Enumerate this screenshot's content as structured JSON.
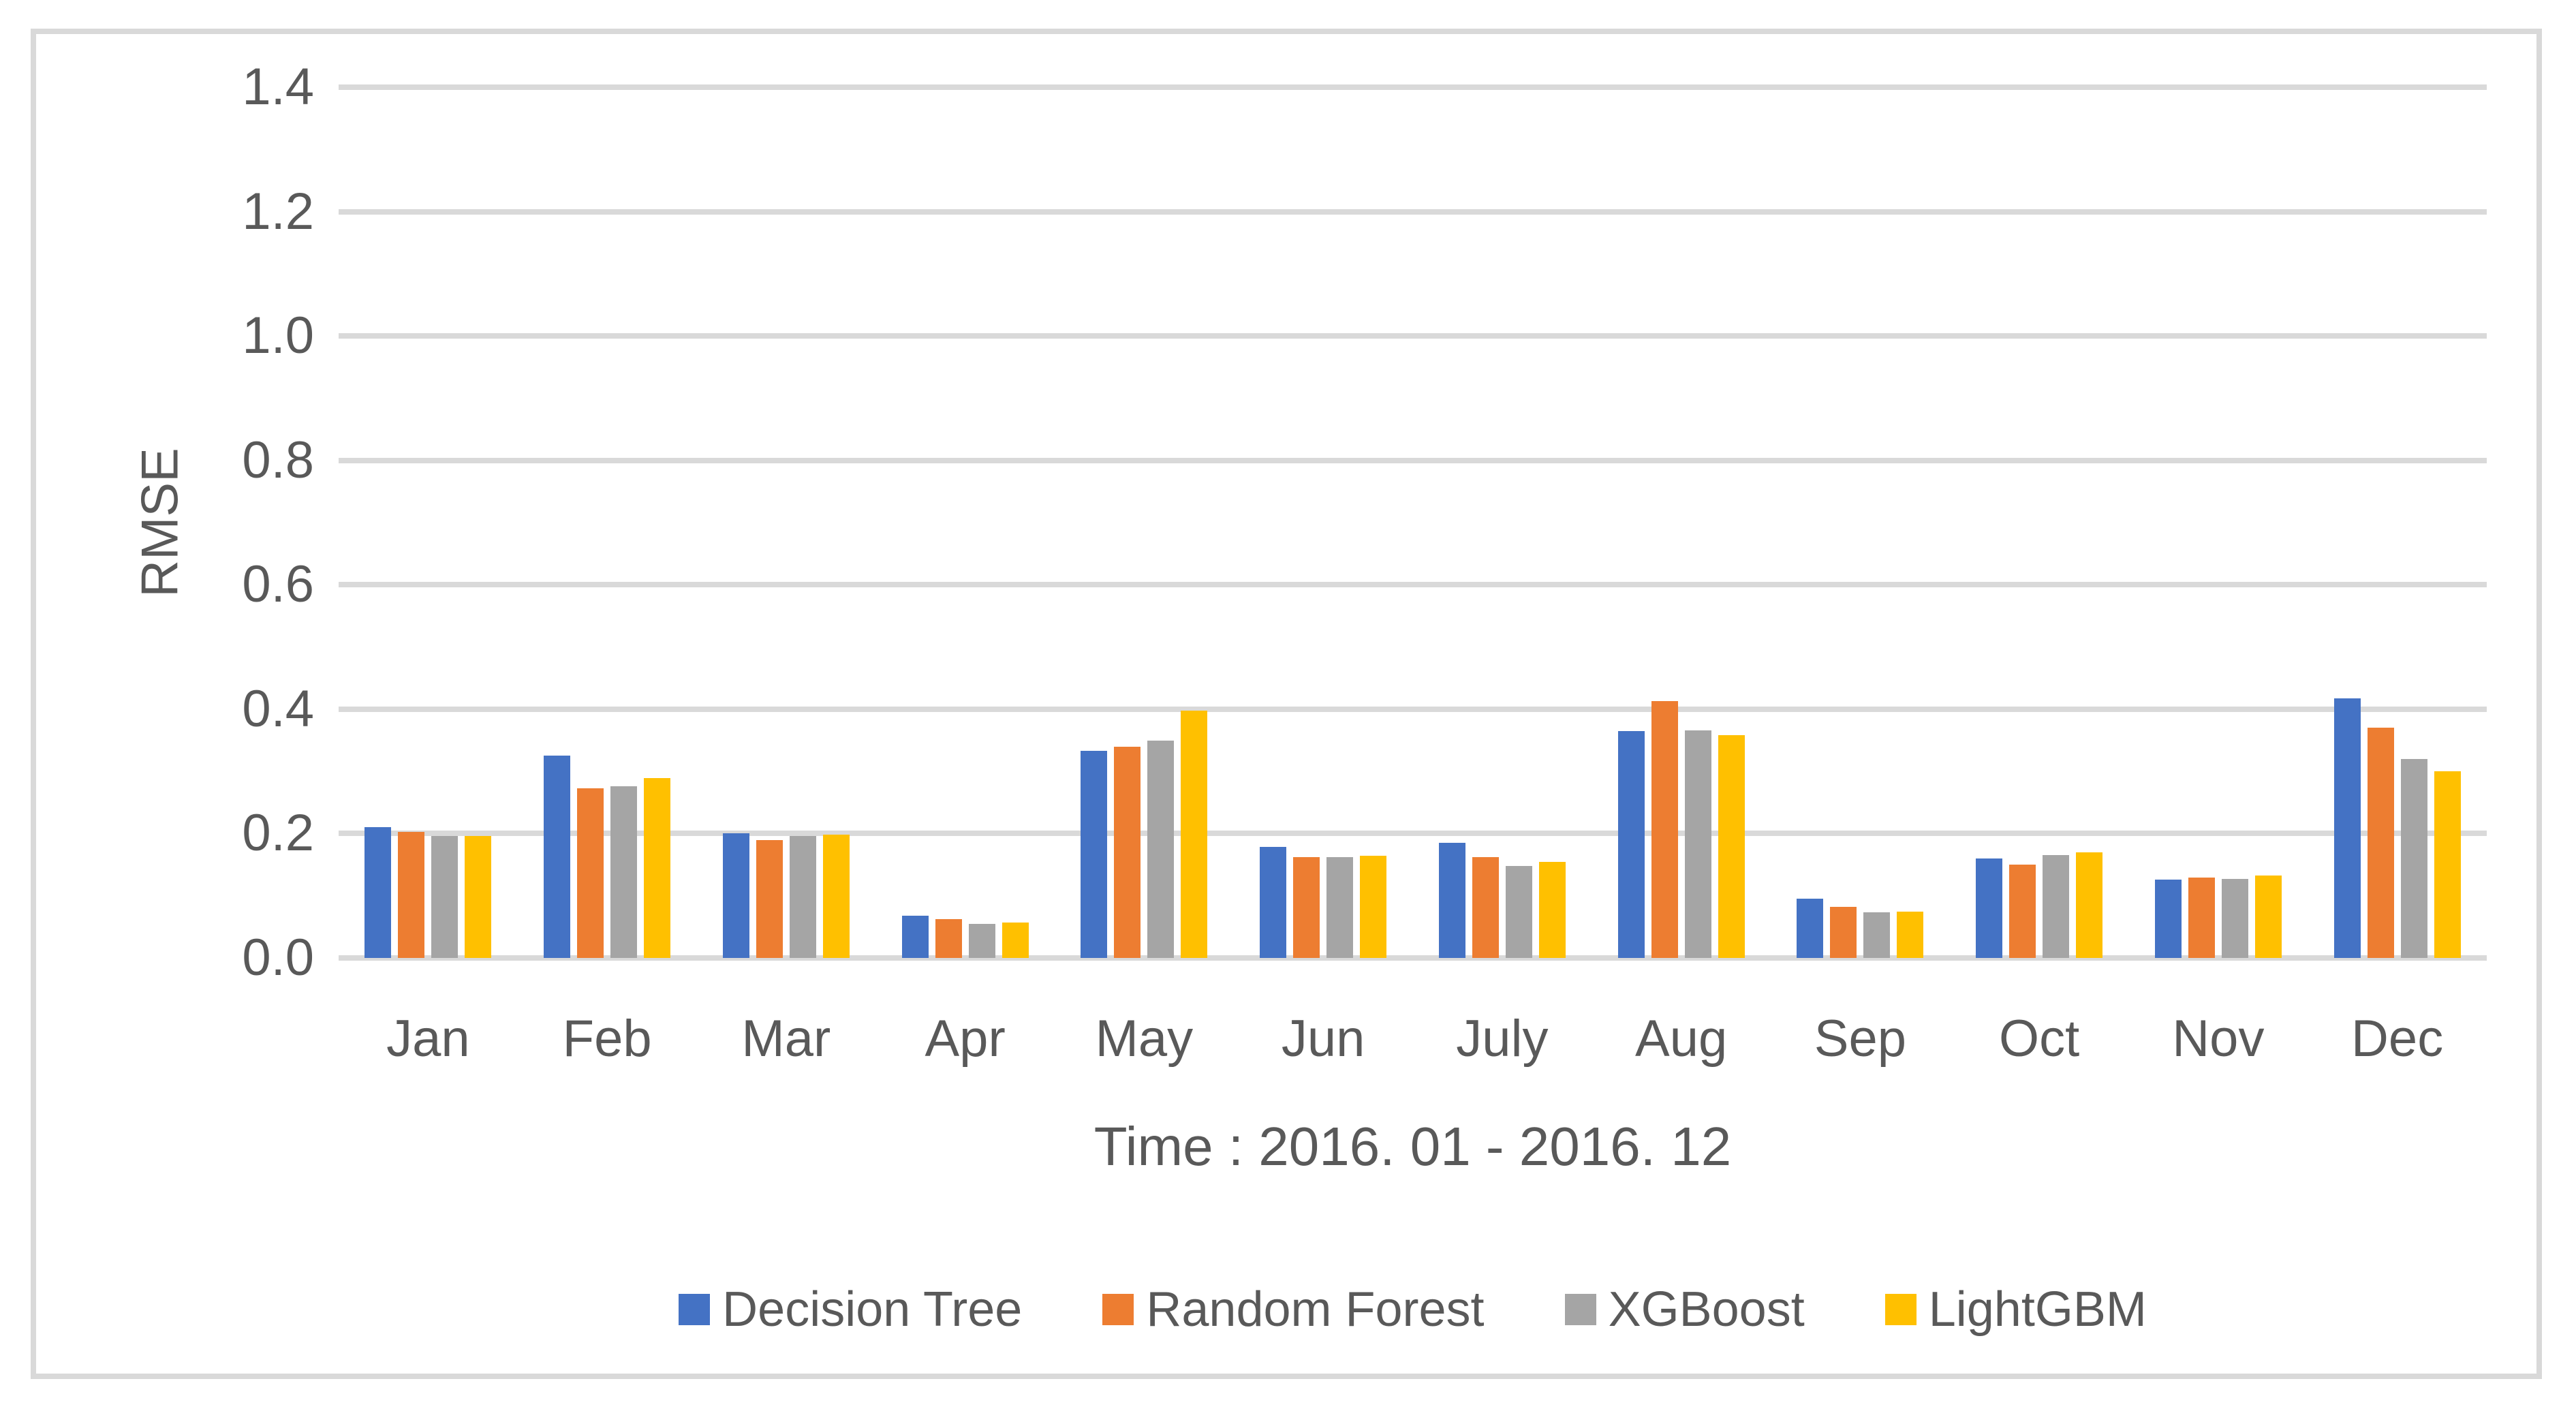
{
  "chart_data": {
    "type": "bar",
    "title": "",
    "categories": [
      "Jan",
      "Feb",
      "Mar",
      "Apr",
      "May",
      "Jun",
      "July",
      "Aug",
      "Sep",
      "Oct",
      "Nov",
      "Dec"
    ],
    "series": [
      {
        "name": "Decision Tree",
        "color": "#4472C4",
        "values": [
          0.21,
          0.325,
          0.2,
          0.068,
          0.333,
          0.179,
          0.185,
          0.365,
          0.095,
          0.16,
          0.126,
          0.417
        ]
      },
      {
        "name": "Random Forest",
        "color": "#ED7D31",
        "values": [
          0.203,
          0.273,
          0.19,
          0.062,
          0.34,
          0.162,
          0.162,
          0.413,
          0.082,
          0.15,
          0.129,
          0.37
        ]
      },
      {
        "name": "XGBoost",
        "color": "#A5A5A5",
        "values": [
          0.196,
          0.276,
          0.196,
          0.055,
          0.35,
          0.162,
          0.148,
          0.366,
          0.073,
          0.165,
          0.127,
          0.32
        ]
      },
      {
        "name": "LightGBM",
        "color": "#FFC000",
        "values": [
          0.196,
          0.289,
          0.198,
          0.057,
          0.398,
          0.164,
          0.155,
          0.358,
          0.074,
          0.17,
          0.133,
          0.3
        ]
      }
    ],
    "xlabel": "Time : 2016. 01 - 2016. 12",
    "ylabel": "RMSE",
    "ylim": [
      0,
      1.4
    ],
    "ytick_step": 0.2,
    "ytick_labels": [
      "0.0",
      "0.2",
      "0.4",
      "0.6",
      "0.8",
      "1.0",
      "1.2",
      "1.4"
    ],
    "grid": "horizontal",
    "legend_position": "bottom"
  },
  "colors": {
    "grid": "#D9D9D9",
    "frame": "#D9D9D9",
    "text": "#595959",
    "background": "#FFFFFF"
  }
}
